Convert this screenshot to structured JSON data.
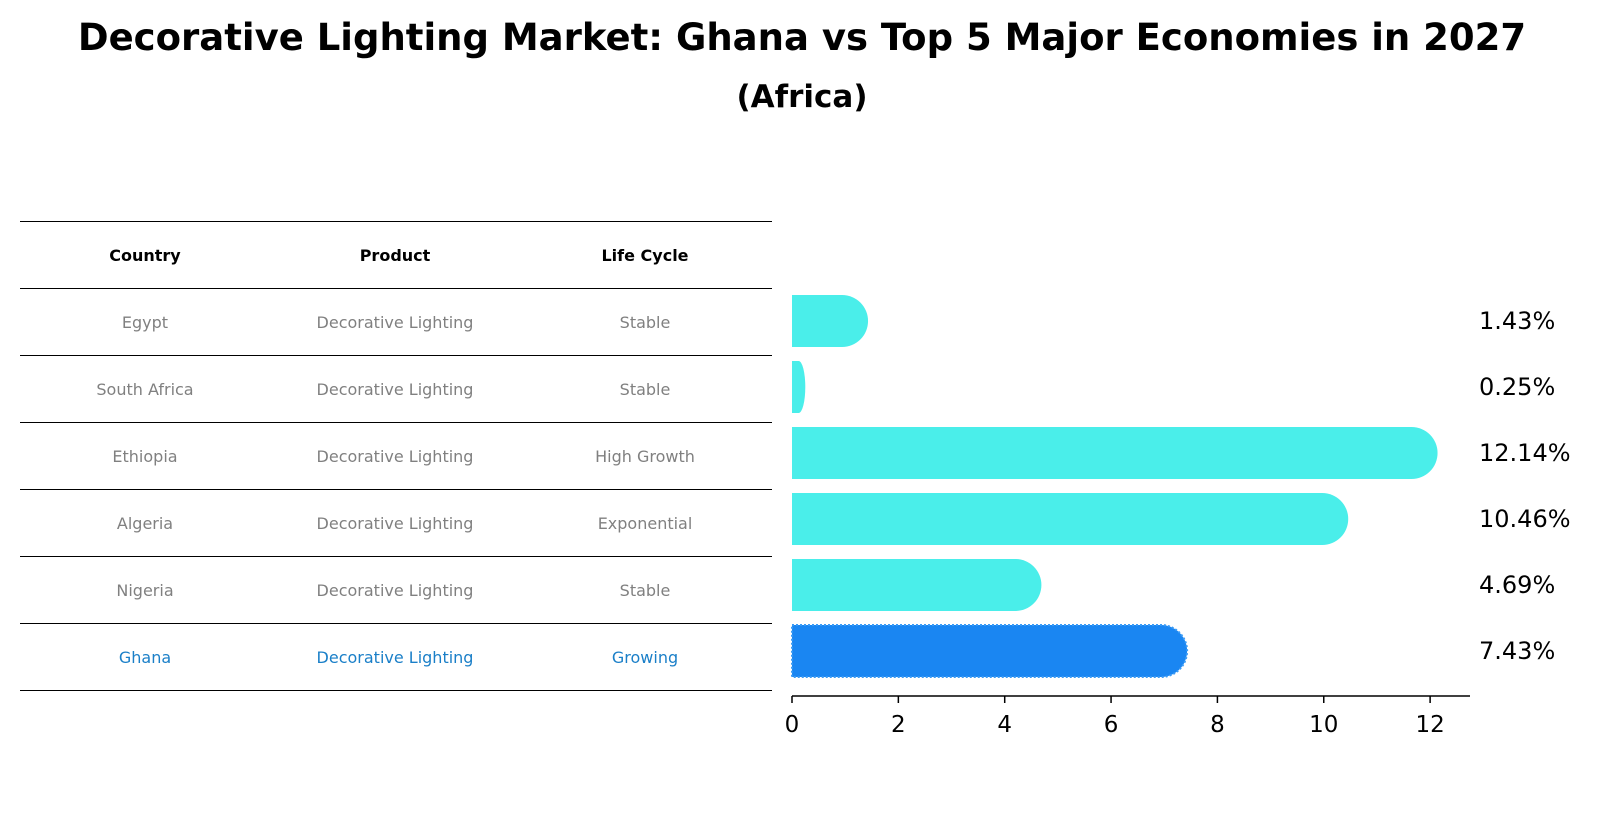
{
  "title": "Decorative Lighting Market: Ghana vs Top 5 Major Economies in 2027",
  "subtitle": "(Africa)",
  "table": {
    "headers": [
      "Country",
      "Product",
      "Life Cycle"
    ],
    "rows": [
      [
        "Egypt",
        "Decorative Lighting",
        "Stable"
      ],
      [
        "South Africa",
        "Decorative Lighting",
        "Stable"
      ],
      [
        "Ethiopia",
        "Decorative Lighting",
        "High Growth"
      ],
      [
        "Algeria",
        "Decorative Lighting",
        "Exponential"
      ],
      [
        "Nigeria",
        "Decorative Lighting",
        "Stable"
      ],
      [
        "Ghana",
        "Decorative Lighting",
        "Growing"
      ]
    ],
    "highlight_row": 5
  },
  "chart_data": {
    "type": "bar",
    "orientation": "horizontal",
    "categories": [
      "Egypt",
      "South Africa",
      "Ethiopia",
      "Algeria",
      "Nigeria",
      "Ghana"
    ],
    "values": [
      1.43,
      0.25,
      12.14,
      10.46,
      4.69,
      7.43
    ],
    "value_labels": [
      "1.43%",
      "0.25%",
      "12.14%",
      "10.46%",
      "4.69%",
      "7.43%"
    ],
    "xlim": [
      0,
      12.75
    ],
    "xticks": [
      0,
      2,
      4,
      6,
      8,
      10,
      12
    ],
    "highlight": "Ghana",
    "colors": {
      "bar": "#4aeeea",
      "highlight": "#1a86f2"
    },
    "grid": false
  }
}
